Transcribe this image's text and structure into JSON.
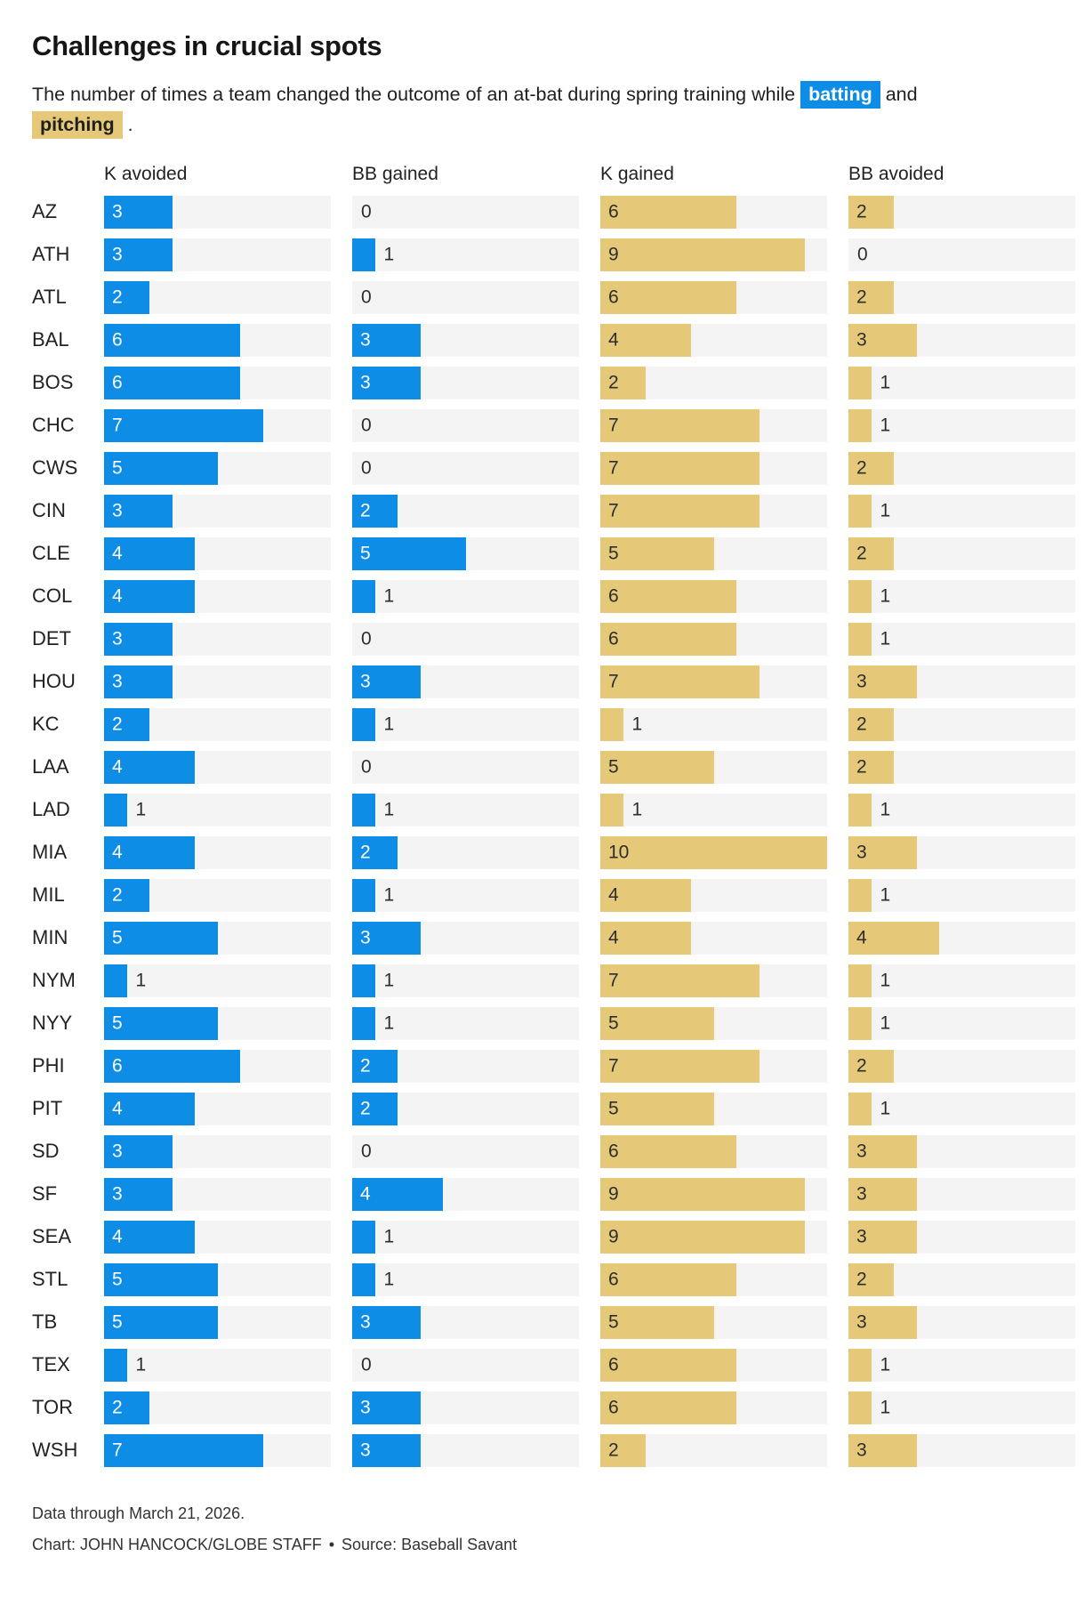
{
  "title": "Challenges in crucial spots",
  "subtitle": {
    "prefix": "The number of times a team changed the outcome of an at-bat during spring training while ",
    "batting": "batting",
    "conjunction": " and ",
    "pitching": "pitching",
    "suffix": " ."
  },
  "columns": [
    "K avoided",
    "BB gained",
    "K gained",
    "BB avoided"
  ],
  "colors": {
    "batting": "#0e8de6",
    "pitching": "#e5c878",
    "track": "#f4f4f4"
  },
  "footer": {
    "note": "Data through March 21, 2026.",
    "chart_credit": "Chart: JOHN HANCOCK/GLOBE STAFF",
    "separator": "•",
    "source": "Source: Baseball Savant"
  },
  "chart_data": {
    "type": "bar",
    "orientation": "horizontal",
    "xlim": [
      0,
      10
    ],
    "max": 10,
    "grid": false,
    "legend_position": "none",
    "categories": [
      "AZ",
      "ATH",
      "ATL",
      "BAL",
      "BOS",
      "CHC",
      "CWS",
      "CIN",
      "CLE",
      "COL",
      "DET",
      "HOU",
      "KC",
      "LAA",
      "LAD",
      "MIA",
      "MIL",
      "MIN",
      "NYM",
      "NYY",
      "PHI",
      "PIT",
      "SD",
      "SF",
      "SEA",
      "STL",
      "TB",
      "TEX",
      "TOR",
      "WSH"
    ],
    "series": [
      {
        "name": "K avoided",
        "role": "batting",
        "values": [
          3,
          3,
          2,
          6,
          6,
          7,
          5,
          3,
          4,
          4,
          3,
          3,
          2,
          4,
          1,
          4,
          2,
          5,
          1,
          5,
          6,
          4,
          3,
          3,
          4,
          5,
          5,
          1,
          2,
          7
        ]
      },
      {
        "name": "BB gained",
        "role": "batting",
        "values": [
          0,
          1,
          0,
          3,
          3,
          0,
          0,
          2,
          5,
          1,
          0,
          3,
          1,
          0,
          1,
          2,
          1,
          3,
          1,
          1,
          2,
          2,
          0,
          4,
          1,
          1,
          3,
          0,
          3,
          3
        ]
      },
      {
        "name": "K gained",
        "role": "pitching",
        "values": [
          6,
          9,
          6,
          4,
          2,
          7,
          7,
          7,
          5,
          6,
          6,
          7,
          1,
          5,
          1,
          10,
          4,
          4,
          7,
          5,
          7,
          5,
          6,
          9,
          9,
          6,
          5,
          6,
          6,
          2
        ]
      },
      {
        "name": "BB avoided",
        "role": "pitching",
        "values": [
          2,
          0,
          2,
          3,
          1,
          1,
          2,
          1,
          2,
          1,
          1,
          3,
          2,
          2,
          1,
          3,
          1,
          4,
          1,
          1,
          2,
          1,
          3,
          3,
          3,
          2,
          3,
          1,
          1,
          3
        ]
      }
    ]
  }
}
